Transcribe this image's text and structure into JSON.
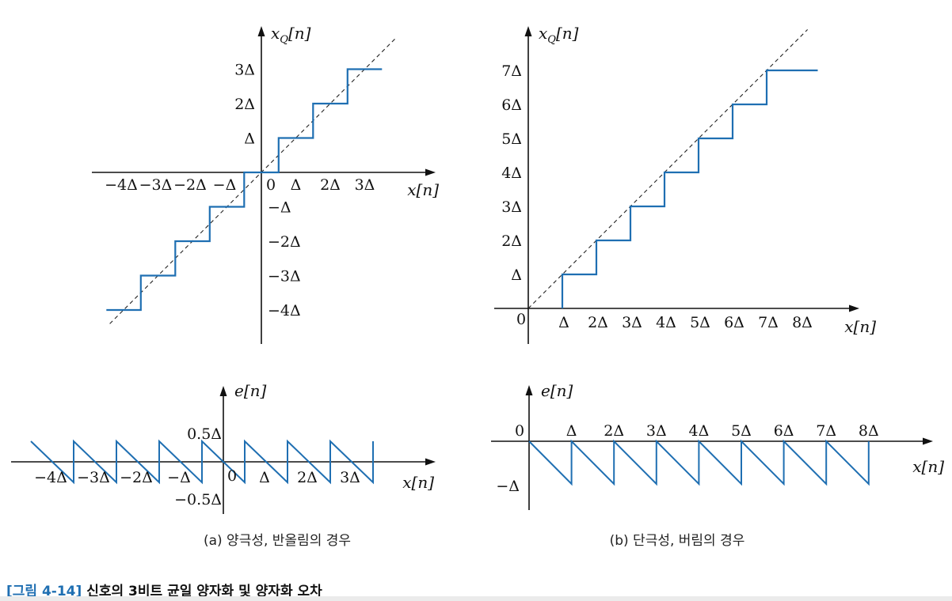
{
  "figure": {
    "number": "[그림 4-14]",
    "title": "신호의 3비트 균일 양자화 및 양자화 오차",
    "captions": {
      "a": "(a) 양극성, 반올림의 경우",
      "b": "(b) 단극성, 버림의 경우"
    }
  },
  "colors": {
    "staircase": "#1f6fb2",
    "axis": "#111111",
    "ideal_line": "#222222"
  },
  "chart_data": [
    {
      "id": "a-top",
      "type": "line",
      "y_axis_label": "x",
      "y_axis_subscript": "Q",
      "y_axis_suffix": "[n]",
      "x_axis_label": "x[n]",
      "origin_label": "0",
      "x_tick_labels": [
        "−4Δ",
        "−3Δ",
        "−2Δ",
        "−Δ",
        "Δ",
        "2Δ",
        "3Δ"
      ],
      "y_tick_labels_pos": [
        "Δ",
        "2Δ",
        "3Δ"
      ],
      "y_tick_labels_neg": [
        "−Δ",
        "−2Δ",
        "−3Δ",
        "−4Δ"
      ],
      "xlim": [
        -4.5,
        4.4
      ],
      "ylim": [
        -4.3,
        4.2
      ],
      "series": [
        {
          "values": [
            [
              -4.5,
              -4
            ],
            [
              -3.5,
              -4
            ],
            [
              -3.5,
              -3
            ],
            [
              -2.5,
              -3
            ],
            [
              -2.5,
              -2
            ],
            [
              -1.5,
              -2
            ],
            [
              -1.5,
              -1
            ],
            [
              -0.5,
              -1
            ],
            [
              -0.5,
              0
            ],
            [
              0.5,
              0
            ],
            [
              0.5,
              1
            ],
            [
              1.5,
              1
            ],
            [
              1.5,
              2
            ],
            [
              2.5,
              2
            ],
            [
              2.5,
              3
            ],
            [
              3.5,
              3
            ]
          ]
        },
        {
          "values": [
            [
              -4.4,
              -4.4
            ],
            [
              3.9,
              3.9
            ]
          ]
        }
      ]
    },
    {
      "id": "b-top",
      "type": "line",
      "y_axis_label": "x",
      "y_axis_subscript": "Q",
      "y_axis_suffix": "[n]",
      "x_axis_label": "x[n]",
      "origin_label": "0",
      "x_tick_labels": [
        "Δ",
        "2Δ",
        "3Δ",
        "4Δ",
        "5Δ",
        "6Δ",
        "7Δ",
        "8Δ"
      ],
      "y_tick_labels": [
        "Δ",
        "2Δ",
        "3Δ",
        "4Δ",
        "5Δ",
        "6Δ",
        "7Δ"
      ],
      "xlim": [
        0,
        9.6
      ],
      "ylim": [
        0,
        8.1
      ],
      "series": [
        {
          "values": [
            [
              1,
              0
            ],
            [
              1,
              1
            ],
            [
              2,
              1
            ],
            [
              2,
              2
            ],
            [
              3,
              2
            ],
            [
              3,
              3
            ],
            [
              4,
              3
            ],
            [
              4,
              4
            ],
            [
              5,
              4
            ],
            [
              5,
              5
            ],
            [
              6,
              5
            ],
            [
              6,
              6
            ],
            [
              7,
              6
            ],
            [
              7,
              7
            ],
            [
              8.5,
              7
            ]
          ]
        },
        {
          "values": [
            [
              0,
              0
            ],
            [
              8.2,
              8.2
            ]
          ]
        }
      ]
    },
    {
      "id": "a-bottom",
      "type": "line",
      "y_axis_label": "e[n]",
      "x_axis_label": "x[n]",
      "origin_label": "0",
      "x_tick_labels": [
        "−4Δ",
        "−3Δ",
        "−2Δ",
        "−Δ",
        "Δ",
        "2Δ",
        "3Δ"
      ],
      "y_tick_labels": [
        "0.5Δ",
        "−0.5Δ"
      ],
      "xlim": [
        -5,
        4.9
      ],
      "ylim": [
        -1.0,
        1.2
      ],
      "series": [
        {
          "values": [
            [
              -4.5,
              0.5
            ],
            [
              -3.5,
              -0.5
            ],
            [
              -3.5,
              0.5
            ],
            [
              -2.5,
              -0.5
            ],
            [
              -2.5,
              0.5
            ],
            [
              -1.5,
              -0.5
            ],
            [
              -1.5,
              0.5
            ],
            [
              -0.5,
              -0.5
            ],
            [
              -0.5,
              0.5
            ],
            [
              0.5,
              -0.5
            ],
            [
              0.5,
              0.5
            ],
            [
              1.5,
              -0.5
            ],
            [
              1.5,
              0.5
            ],
            [
              2.5,
              -0.5
            ],
            [
              2.5,
              0.5
            ],
            [
              3.5,
              -0.5
            ],
            [
              3.5,
              0.5
            ]
          ]
        }
      ]
    },
    {
      "id": "b-bottom",
      "type": "line",
      "y_axis_label": "e[n]",
      "x_axis_label": "x[n]",
      "origin_label": "0",
      "x_tick_labels": [
        "Δ",
        "2Δ",
        "3Δ",
        "4Δ",
        "5Δ",
        "6Δ",
        "7Δ",
        "8Δ"
      ],
      "y_tick_labels": [
        "−Δ"
      ],
      "xlim": [
        0,
        9.4
      ],
      "ylim": [
        -1.2,
        1.0
      ],
      "series": [
        {
          "values": [
            [
              0,
              0
            ],
            [
              1,
              -1
            ],
            [
              1,
              0
            ],
            [
              2,
              -1
            ],
            [
              2,
              0
            ],
            [
              3,
              -1
            ],
            [
              3,
              0
            ],
            [
              4,
              -1
            ],
            [
              4,
              0
            ],
            [
              5,
              -1
            ],
            [
              5,
              0
            ],
            [
              6,
              -1
            ],
            [
              6,
              0
            ],
            [
              7,
              -1
            ],
            [
              7,
              0
            ],
            [
              8,
              -1
            ],
            [
              8,
              0
            ]
          ]
        }
      ]
    }
  ]
}
